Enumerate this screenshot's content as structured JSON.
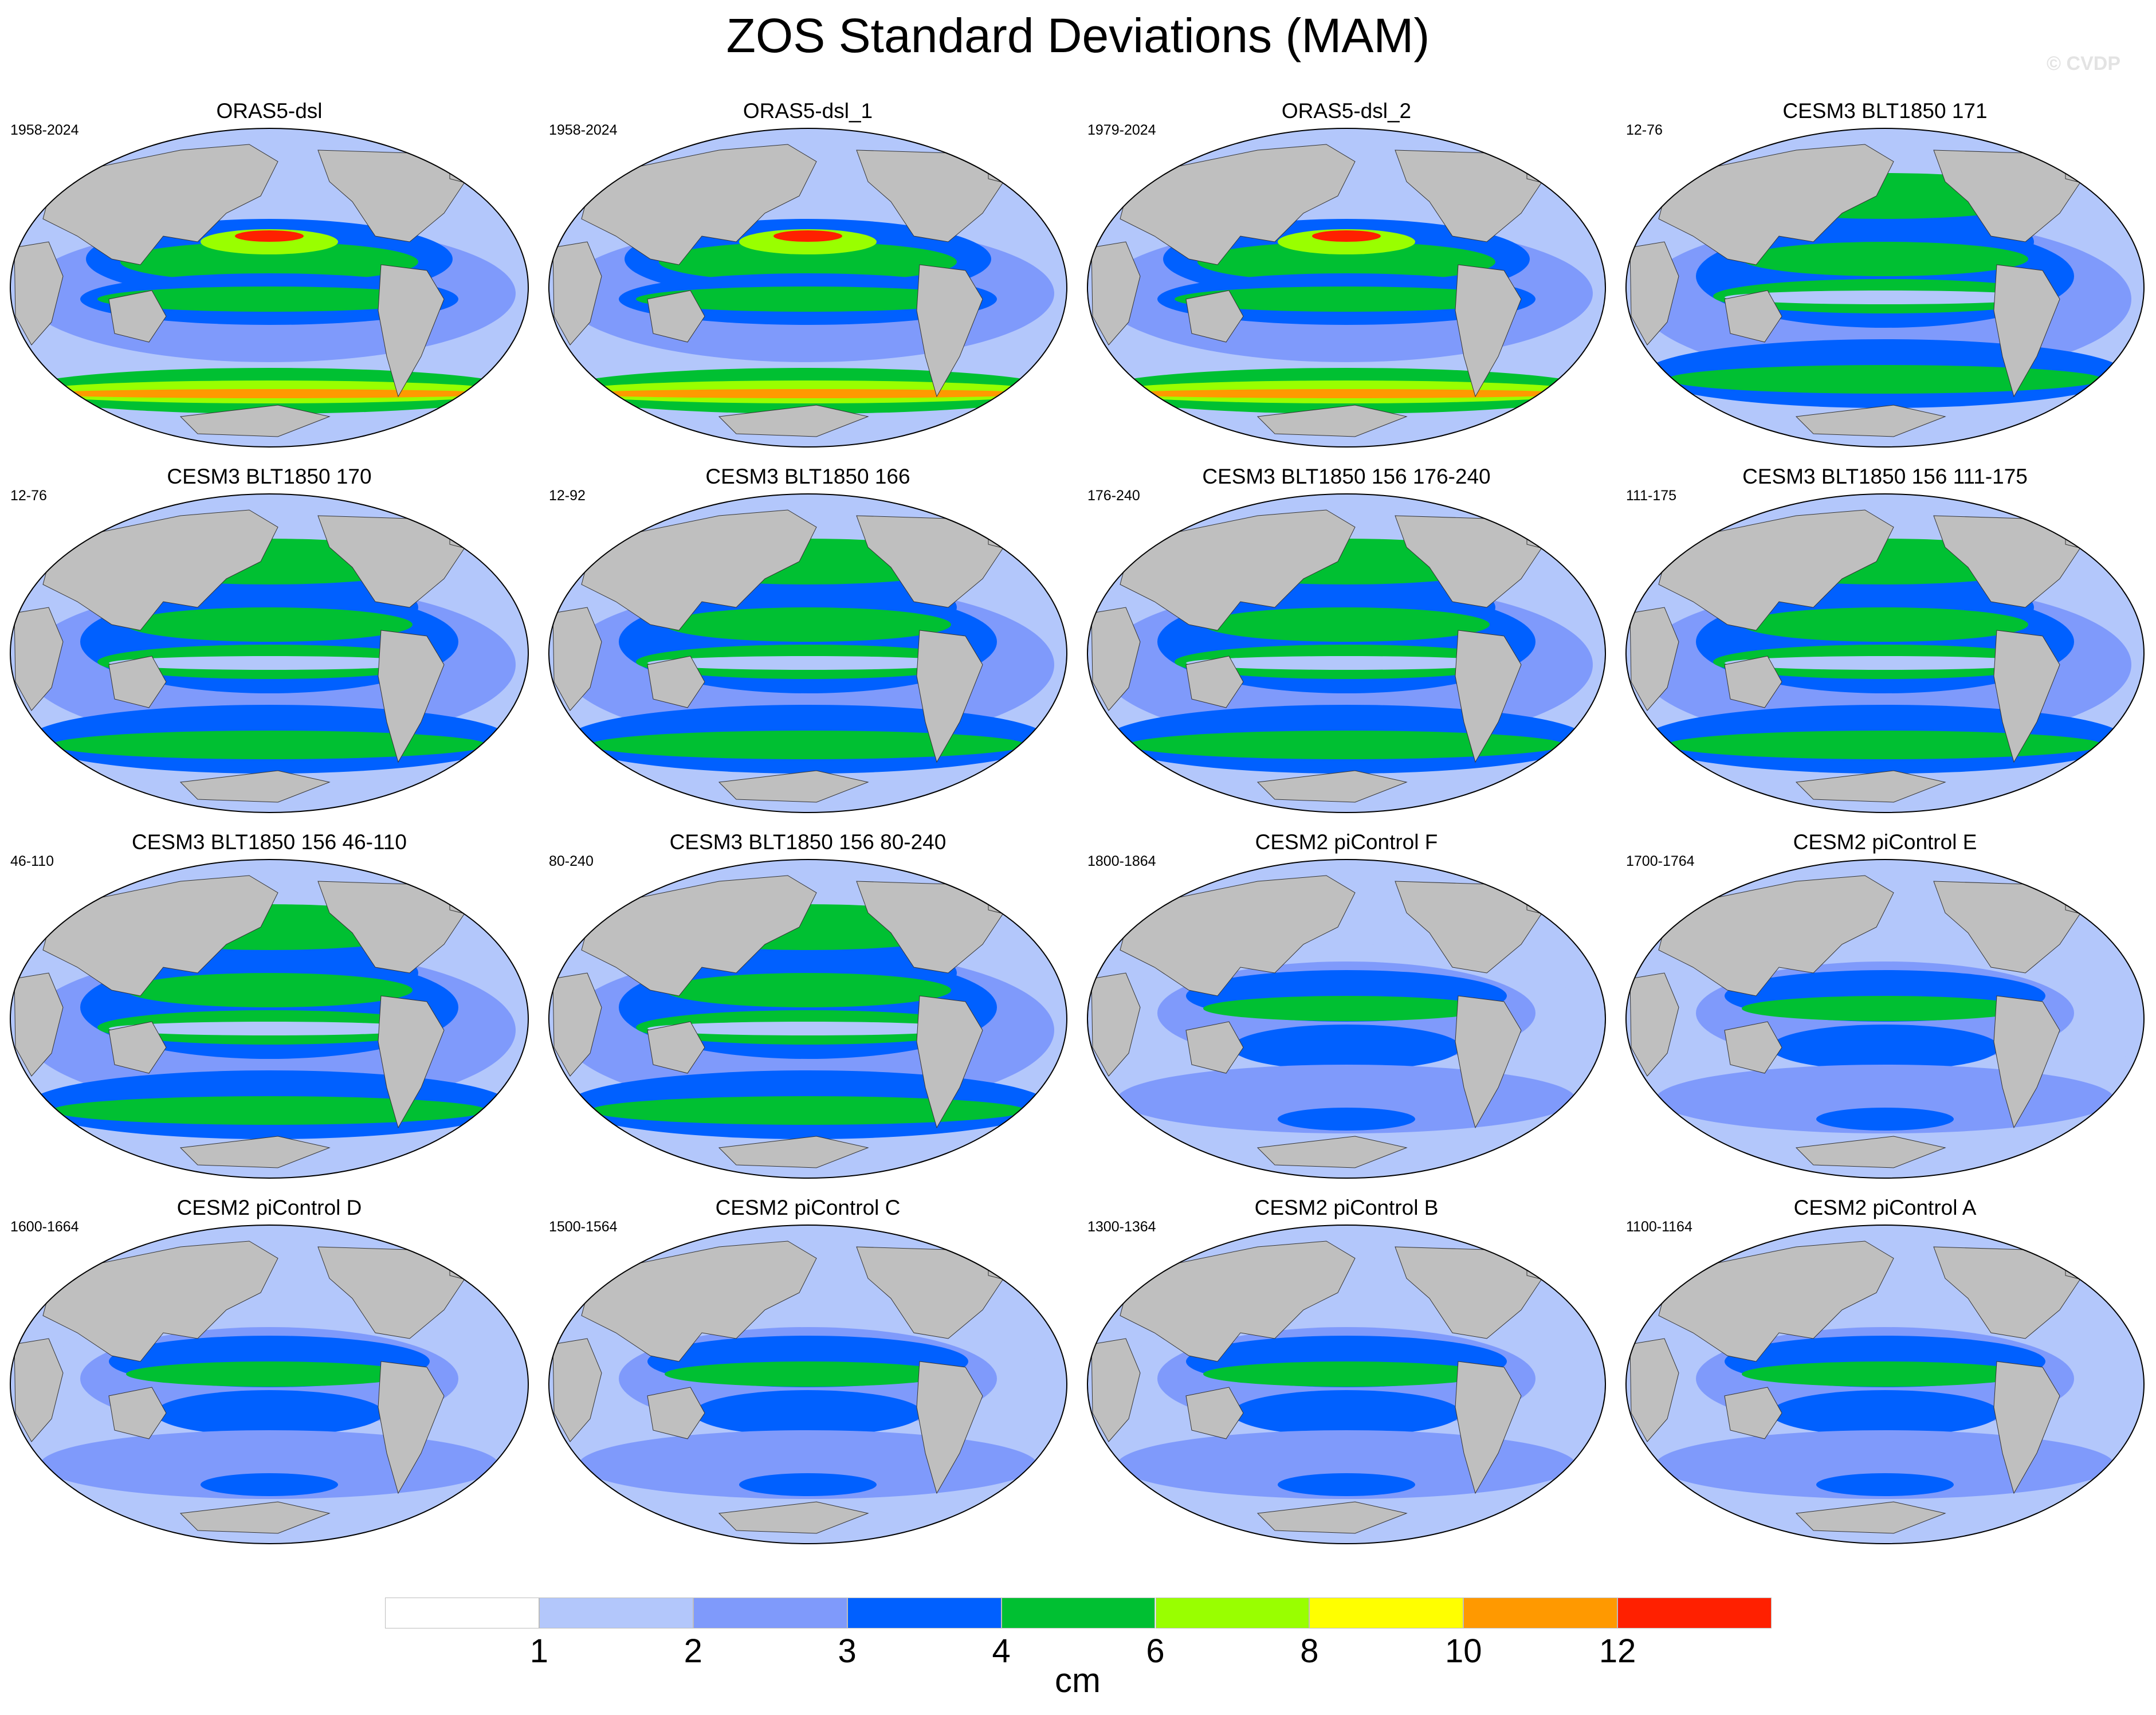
{
  "figure": {
    "title": "ZOS Standard Deviations (MAM)",
    "watermark": "© CVDP",
    "units": "cm"
  },
  "colorbar": {
    "levels": [
      "1",
      "2",
      "3",
      "4",
      "6",
      "8",
      "10",
      "12"
    ],
    "colors": [
      "#ffffff",
      "#b3c7fb",
      "#7f9afb",
      "#0060ff",
      "#00c032",
      "#99ff00",
      "#ffff00",
      "#ff9900",
      "#ff2000"
    ],
    "land_color": "#bfbfbf"
  },
  "panels": [
    {
      "title": "ORAS5-dsl",
      "years": "1958-2024",
      "scheme": "reanalysis"
    },
    {
      "title": "ORAS5-dsl_1",
      "years": "1958-2024",
      "scheme": "reanalysis"
    },
    {
      "title": "ORAS5-dsl_2",
      "years": "1979-2024",
      "scheme": "reanalysis"
    },
    {
      "title": "CESM3 BLT1850 171",
      "years": "12-76",
      "scheme": "cesm3"
    },
    {
      "title": "CESM3 BLT1850 170",
      "years": "12-76",
      "scheme": "cesm3"
    },
    {
      "title": "CESM3 BLT1850 166",
      "years": "12-92",
      "scheme": "cesm3"
    },
    {
      "title": "CESM3 BLT1850 156 176-240",
      "years": "176-240",
      "scheme": "cesm3"
    },
    {
      "title": "CESM3 BLT1850 156 111-175",
      "years": "111-175",
      "scheme": "cesm3"
    },
    {
      "title": "CESM3 BLT1850 156 46-110",
      "years": "46-110",
      "scheme": "cesm3"
    },
    {
      "title": "CESM3 BLT1850 156 80-240",
      "years": "80-240",
      "scheme": "cesm3"
    },
    {
      "title": "CESM2 piControl F",
      "years": "1800-1864",
      "scheme": "cesm2"
    },
    {
      "title": "CESM2 piControl E",
      "years": "1700-1764",
      "scheme": "cesm2"
    },
    {
      "title": "CESM2 piControl D",
      "years": "1600-1664",
      "scheme": "cesm2"
    },
    {
      "title": "CESM2 piControl C",
      "years": "1500-1564",
      "scheme": "cesm2"
    },
    {
      "title": "CESM2 piControl B",
      "years": "1300-1364",
      "scheme": "cesm2"
    },
    {
      "title": "CESM2 piControl A",
      "years": "1100-1164",
      "scheme": "cesm2"
    }
  ]
}
